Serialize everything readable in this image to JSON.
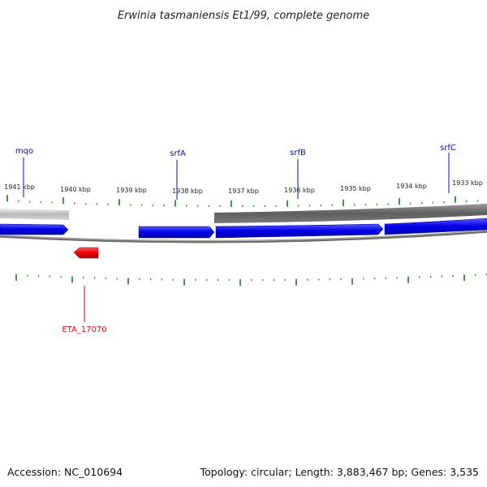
{
  "title": "Erwinia tasmaniensis Et1/99, complete genome",
  "accession": "Accession: NC_010694",
  "stats": "Topology: circular; Length: 3,883,467 bp; Genes: 3,535",
  "colors": {
    "forward_gene": "#0000ee",
    "reverse_gene": "#ee0000",
    "tick": "#2e8b2e",
    "forward_label": "#1010a0",
    "reverse_label": "#cc1010",
    "backbone": "#777777"
  },
  "kbp_labels": [
    "1941 kbp",
    "1940 kbp",
    "1939 kbp",
    "1938 kbp",
    "1937 kbp",
    "1936 kbp",
    "1935 kbp",
    "1934 kbp",
    "1933 kbp"
  ],
  "genes_forward": [
    "mqo",
    "srfA",
    "srfB",
    "srfC"
  ],
  "genes_reverse": [
    "ETA_17070"
  ]
}
